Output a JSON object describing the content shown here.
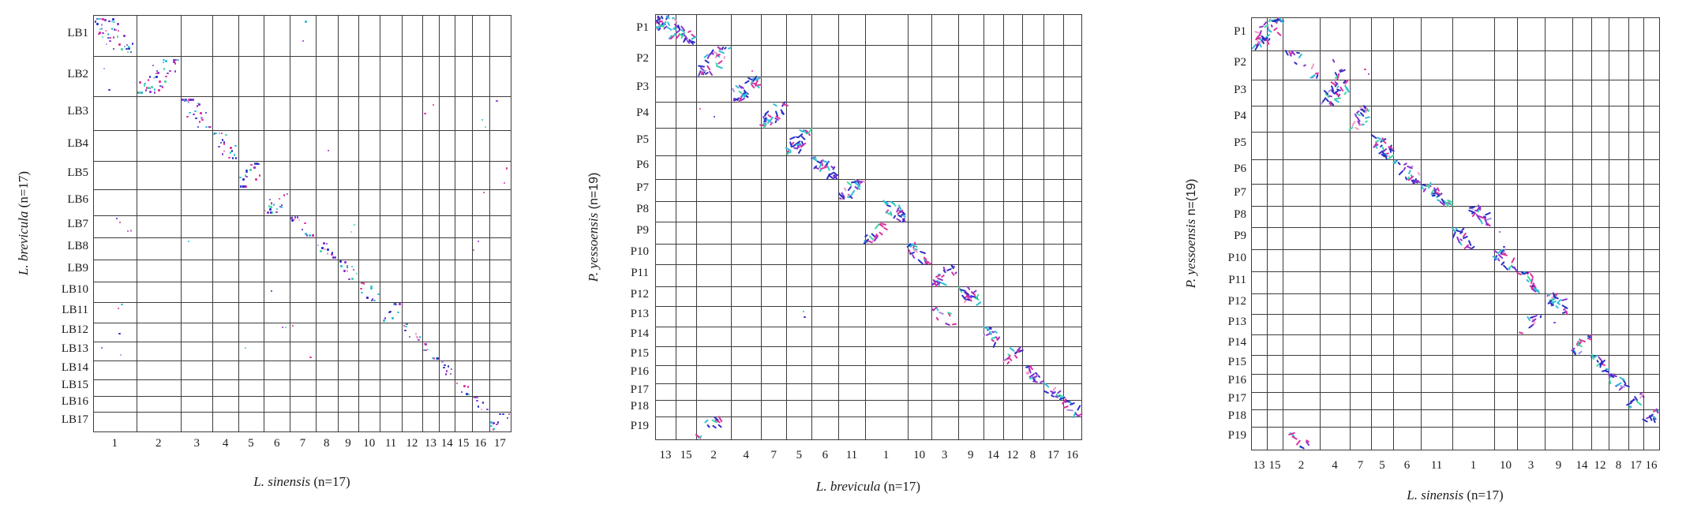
{
  "palette": {
    "background": "#ffffff",
    "grid_line": "#3c3c3c",
    "label_color": "#1b1b1b",
    "mark_colors": [
      {
        "name": "deep-blue",
        "hex": "#2b2fc6",
        "weight": 26
      },
      {
        "name": "purple",
        "hex": "#8a33d1",
        "weight": 20
      },
      {
        "name": "magenta",
        "hex": "#dd2f9d",
        "weight": 17
      },
      {
        "name": "cyan",
        "hex": "#30bfd4",
        "weight": 18
      },
      {
        "name": "mint-green",
        "hex": "#3fd8a4",
        "weight": 9
      },
      {
        "name": "light-pink",
        "hex": "#f09ac9",
        "weight": 6
      },
      {
        "name": "lavender",
        "hex": "#a98fe0",
        "weight": 4
      }
    ]
  },
  "chart_data": [
    {
      "id": "brevicula-vs-sinensis",
      "type": "scatter",
      "marker": "dot",
      "title_y": {
        "species": "L. brevicula",
        "suffix": " (n=17)",
        "suffix_sans": false
      },
      "title_x": {
        "species": "L. sinensis",
        "suffix": " (n=17)",
        "suffix_sans": false
      },
      "rows": [
        "LB1",
        "LB2",
        "LB3",
        "LB4",
        "LB5",
        "LB6",
        "LB7",
        "LB8",
        "LB9",
        "LB10",
        "LB11",
        "LB12",
        "LB13",
        "LB14",
        "LB15",
        "LB16",
        "LB17"
      ],
      "cols": [
        "1",
        "2",
        "3",
        "4",
        "5",
        "6",
        "7",
        "8",
        "9",
        "10",
        "11",
        "12",
        "13",
        "14",
        "15",
        "16",
        "17"
      ],
      "row_rel": [
        51,
        50,
        42,
        38,
        35,
        32,
        28,
        27,
        27,
        26,
        25,
        24,
        23,
        23,
        21,
        20,
        24
      ],
      "col_rel": [
        54,
        56,
        40,
        32,
        32,
        33,
        32,
        28,
        26,
        27,
        27,
        26,
        21,
        20,
        21,
        22,
        27
      ],
      "blocks": [
        {
          "r": 0,
          "c": 0
        },
        {
          "r": 1,
          "c": 1
        },
        {
          "r": 2,
          "c": 2
        },
        {
          "r": 3,
          "c": 3
        },
        {
          "r": 4,
          "c": 4
        },
        {
          "r": 5,
          "c": 5
        },
        {
          "r": 6,
          "c": 6
        },
        {
          "r": 7,
          "c": 7
        },
        {
          "r": 8,
          "c": 8
        },
        {
          "r": 9,
          "c": 9
        },
        {
          "r": 10,
          "c": 10
        },
        {
          "r": 11,
          "c": 11
        },
        {
          "r": 12,
          "c": 12
        },
        {
          "r": 13,
          "c": 13
        },
        {
          "r": 14,
          "c": 14
        },
        {
          "r": 15,
          "c": 15
        },
        {
          "r": 16,
          "c": 16
        }
      ],
      "noise": [
        {
          "r": 0,
          "c": 6
        },
        {
          "r": 1,
          "c": 0
        },
        {
          "r": 2,
          "c": 12
        },
        {
          "r": 2,
          "c": 15
        },
        {
          "r": 2,
          "c": 16
        },
        {
          "r": 3,
          "c": 7
        },
        {
          "r": 4,
          "c": 16
        },
        {
          "r": 5,
          "c": 15
        },
        {
          "r": 6,
          "c": 0
        },
        {
          "r": 6,
          "c": 0
        },
        {
          "r": 6,
          "c": 8
        },
        {
          "r": 7,
          "c": 2
        },
        {
          "r": 7,
          "c": 15
        },
        {
          "r": 9,
          "c": 5
        },
        {
          "r": 10,
          "c": 0
        },
        {
          "r": 11,
          "c": 0
        },
        {
          "r": 11,
          "c": 5
        },
        {
          "r": 11,
          "c": 6
        },
        {
          "r": 12,
          "c": 0
        },
        {
          "r": 12,
          "c": 4
        },
        {
          "r": 12,
          "c": 6
        }
      ]
    },
    {
      "id": "yessoensis-vs-brevicula",
      "type": "scatter",
      "marker": "dash",
      "title_y": {
        "species": "P. yessoensis",
        "suffix": " (n=19)",
        "suffix_sans": true
      },
      "title_x": {
        "species": "L. brevicula",
        "suffix": " (n=17)",
        "suffix_sans": false
      },
      "rows": [
        "P1",
        "P2",
        "P3",
        "P4",
        "P5",
        "P6",
        "P7",
        "P8",
        "P9",
        "P10",
        "P11",
        "P12",
        "P13",
        "P14",
        "P15",
        "P16",
        "P17",
        "P18",
        "P19"
      ],
      "cols": [
        "13",
        "15",
        "2",
        "4",
        "7",
        "5",
        "6",
        "11",
        "1",
        "10",
        "3",
        "9",
        "14",
        "12",
        "8",
        "17",
        "16"
      ],
      "row_rel": [
        37,
        37,
        31,
        31,
        33,
        28,
        26,
        25,
        26,
        25,
        26,
        24,
        24,
        24,
        22,
        22,
        20,
        20,
        27
      ],
      "col_rel": [
        26,
        26,
        44,
        38,
        32,
        32,
        34,
        33,
        54,
        30,
        34,
        32,
        25,
        24,
        27,
        25,
        23
      ],
      "blocks": [
        {
          "r": 0,
          "c": 0,
          "c2": 1
        },
        {
          "r": 1,
          "c": 2,
          "d": 0.7
        },
        {
          "r": 2,
          "c": 3
        },
        {
          "r": 3,
          "c": 4
        },
        {
          "r": 4,
          "c": 5
        },
        {
          "r": 5,
          "c": 6
        },
        {
          "r": 6,
          "c": 7
        },
        {
          "r": 7,
          "c": 8,
          "x0": 0.42,
          "x1": 1
        },
        {
          "r": 8,
          "c": 8,
          "x0": 0,
          "x1": 0.52,
          "d": 0.8
        },
        {
          "r": 9,
          "c": 9
        },
        {
          "r": 10,
          "c": 10
        },
        {
          "r": 11,
          "c": 11
        },
        {
          "r": 12,
          "c": 10,
          "d": 0.45
        },
        {
          "r": 13,
          "c": 12
        },
        {
          "r": 14,
          "c": 13
        },
        {
          "r": 15,
          "c": 14
        },
        {
          "r": 16,
          "c": 15
        },
        {
          "r": 17,
          "c": 16
        },
        {
          "r": 18,
          "c": 2,
          "x0": 0,
          "x1": 0.75,
          "d": 0.5
        }
      ],
      "noise": [
        {
          "r": 1,
          "c": 3
        },
        {
          "r": 3,
          "c": 2
        },
        {
          "r": 12,
          "c": 5
        }
      ]
    },
    {
      "id": "yessoensis-vs-sinensis",
      "type": "scatter",
      "marker": "dash",
      "title_y": {
        "species": "P. yessoensis",
        "suffix": " n=(19)",
        "suffix_sans": true
      },
      "title_x": {
        "species": "L. sinensis",
        "suffix": " (n=17)",
        "suffix_sans": false
      },
      "rows": [
        "P1",
        "P2",
        "P3",
        "P4",
        "P5",
        "P6",
        "P7",
        "P8",
        "P9",
        "P10",
        "P11",
        "P12",
        "P13",
        "P14",
        "P15",
        "P16",
        "P17",
        "P18",
        "P19"
      ],
      "cols": [
        "13",
        "15",
        "2",
        "4",
        "7",
        "5",
        "6",
        "11",
        "1",
        "10",
        "3",
        "9",
        "14",
        "12",
        "8",
        "17",
        "16"
      ],
      "row_rel": [
        40,
        35,
        32,
        31,
        34,
        29,
        27,
        26,
        27,
        26,
        27,
        25,
        25,
        24,
        23,
        22,
        21,
        21,
        28
      ],
      "col_rel": [
        20,
        20,
        47,
        38,
        27,
        28,
        35,
        40,
        53,
        29,
        35,
        35,
        24,
        22,
        25,
        19,
        20
      ],
      "blocks": [
        {
          "r": 0,
          "c": 0,
          "c2": 1
        },
        {
          "r": 1,
          "c": 2,
          "d": 0.35
        },
        {
          "r": 1,
          "c": 3,
          "d": 0.12
        },
        {
          "r": 2,
          "c": 3
        },
        {
          "r": 3,
          "c": 4
        },
        {
          "r": 4,
          "c": 5
        },
        {
          "r": 5,
          "c": 6
        },
        {
          "r": 6,
          "c": 7
        },
        {
          "r": 7,
          "c": 8,
          "x0": 0.42,
          "x1": 1
        },
        {
          "r": 8,
          "c": 8,
          "x0": 0,
          "x1": 0.52,
          "d": 0.8
        },
        {
          "r": 9,
          "c": 9
        },
        {
          "r": 10,
          "c": 10,
          "d": 0.8
        },
        {
          "r": 11,
          "c": 11
        },
        {
          "r": 12,
          "c": 10,
          "d": 0.4
        },
        {
          "r": 13,
          "c": 12
        },
        {
          "r": 14,
          "c": 13
        },
        {
          "r": 15,
          "c": 14
        },
        {
          "r": 16,
          "c": 15
        },
        {
          "r": 17,
          "c": 16
        },
        {
          "r": 18,
          "c": 2,
          "x0": 0.1,
          "x1": 0.7,
          "d": 0.4
        }
      ],
      "noise": [
        {
          "r": 1,
          "c": 4
        },
        {
          "r": 12,
          "c": 11
        },
        {
          "r": 8,
          "c": 9
        }
      ]
    }
  ]
}
